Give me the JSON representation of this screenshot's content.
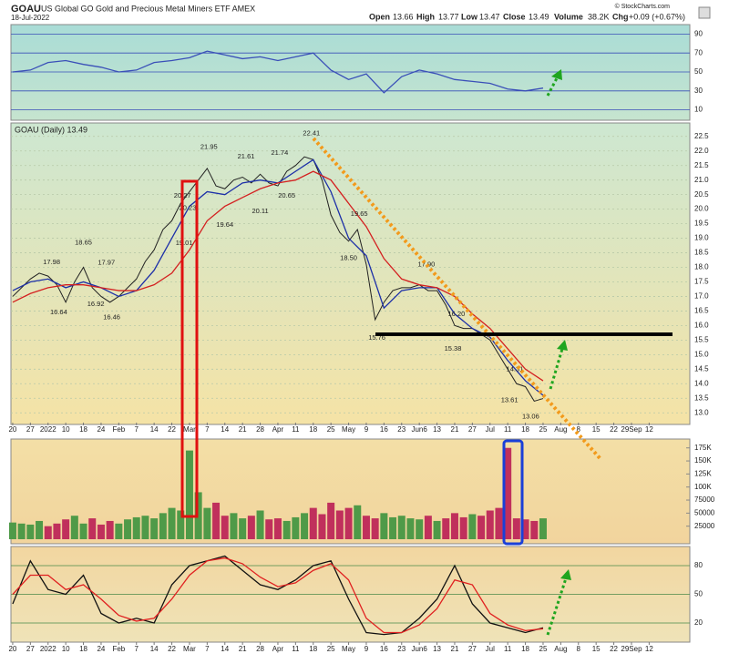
{
  "header": {
    "symbol": "GOAU",
    "description": "US Global GO Gold and Precious Metal Miners ETF  AMEX",
    "date": "18-Jul-2022",
    "open_label": "Open",
    "open": "13.66",
    "high_label": "High",
    "high": "13.77",
    "low_label": "Low",
    "low": "13.47",
    "close_label": "Close",
    "close": "13.49",
    "volume_label": "Volume",
    "volume": "38.2K",
    "chg_label": "Chg",
    "chg": "+0.09 (+0.67%)",
    "copyright": "© StockCharts.com"
  },
  "chart_data": [
    {
      "type": "line",
      "name": "rsi",
      "xlim": [
        -0.1,
        38.3
      ],
      "ylim": [
        0,
        100
      ],
      "yticks": [
        10,
        30,
        50,
        70,
        90
      ],
      "grid": true,
      "grid_color": "#3a4fb8",
      "series": [
        {
          "name": "RSI",
          "color": "#3a4fb8",
          "x": [
            0,
            1,
            2,
            3,
            4,
            5,
            6,
            7,
            8,
            9,
            10,
            11,
            12,
            13,
            14,
            15,
            16,
            17,
            18,
            19,
            20,
            21,
            22,
            23,
            24,
            25,
            26,
            27,
            28,
            29,
            30
          ],
          "values": [
            50,
            52,
            60,
            62,
            58,
            55,
            50,
            52,
            60,
            62,
            65,
            72,
            68,
            64,
            66,
            62,
            66,
            70,
            52,
            42,
            48,
            28,
            45,
            52,
            48,
            42,
            40,
            38,
            32,
            30,
            33
          ]
        }
      ]
    },
    {
      "type": "line",
      "name": "price",
      "title": "GOAU (Daily) 13.49",
      "xlim": [
        -0.1,
        38.3
      ],
      "ylim": [
        12.6,
        22.9
      ],
      "grid": true,
      "grid_color": "#b7c9a8",
      "yticks": [
        {
          "value": 13,
          "label": "13.0"
        },
        13.5,
        {
          "value": 14,
          "label": "14.0"
        },
        14.5,
        {
          "value": 15,
          "label": "15.0"
        },
        15.5,
        {
          "value": 16,
          "label": "16.0"
        },
        16.5,
        {
          "value": 17,
          "label": "17.0"
        },
        17.5,
        {
          "value": 18,
          "label": "18.0"
        },
        18.5,
        {
          "value": 19,
          "label": "19.0"
        },
        19.5,
        {
          "value": 20,
          "label": "20.0"
        },
        20.5,
        {
          "value": 21,
          "label": "21.0"
        },
        21.5,
        {
          "value": 22,
          "label": "22.0"
        },
        22.5
      ],
      "xticks": [
        {
          "value": 0,
          "label": "20"
        },
        {
          "value": 1,
          "label": "27"
        },
        {
          "value": 2,
          "label": "2022"
        },
        {
          "value": 3,
          "label": "10"
        },
        {
          "value": 4,
          "label": "18"
        },
        {
          "value": 5,
          "label": "24"
        },
        {
          "value": 6,
          "label": "Feb"
        },
        {
          "value": 7,
          "label": "7"
        },
        {
          "value": 8,
          "label": "14"
        },
        {
          "value": 9,
          "label": "22"
        },
        {
          "value": 10,
          "label": "Mar"
        },
        {
          "value": 11,
          "label": "7"
        },
        {
          "value": 12,
          "label": "14"
        },
        {
          "value": 13,
          "label": "21"
        },
        {
          "value": 14,
          "label": "28"
        },
        {
          "value": 15,
          "label": "Apr"
        },
        {
          "value": 16,
          "label": "11"
        },
        {
          "value": 17,
          "label": "18"
        },
        {
          "value": 18,
          "label": "25"
        },
        {
          "value": 19,
          "label": "May"
        },
        {
          "value": 20,
          "label": "9"
        },
        {
          "value": 21,
          "label": "16"
        },
        {
          "value": 22,
          "label": "23"
        },
        {
          "value": 23,
          "label": "Jun6"
        },
        {
          "value": 24,
          "label": "13"
        },
        {
          "value": 25,
          "label": "21"
        },
        {
          "value": 26,
          "label": "27"
        },
        {
          "value": 27,
          "label": "Jul"
        },
        {
          "value": 28,
          "label": "11"
        },
        {
          "value": 29,
          "label": "18"
        },
        {
          "value": 30,
          "label": "25"
        },
        {
          "value": 31,
          "label": "Aug"
        },
        {
          "value": 32,
          "label": "8"
        },
        {
          "value": 33,
          "label": "15"
        },
        {
          "value": 34,
          "label": "22"
        },
        {
          "value": 35,
          "label": "29Sep"
        },
        {
          "value": 36,
          "label": "12"
        }
      ],
      "series": [
        {
          "name": "Close",
          "color": "#222222",
          "x": [
            0,
            0.5,
            1,
            1.5,
            2,
            2.5,
            3,
            3.5,
            4,
            4.5,
            5,
            5.5,
            6,
            6.5,
            7,
            7.5,
            8,
            8.5,
            9,
            9.5,
            10,
            10.5,
            11,
            11.5,
            12,
            12.5,
            13,
            13.5,
            14,
            14.5,
            15,
            15.5,
            16,
            16.5,
            17,
            17.5,
            18,
            18.5,
            19,
            19.5,
            20,
            20.5,
            21,
            21.5,
            22,
            22.5,
            23,
            23.5,
            24,
            24.5,
            25,
            25.5,
            26,
            26.5,
            27,
            27.5,
            28,
            28.5,
            29,
            29.5,
            30
          ],
          "values": [
            17.0,
            17.3,
            17.6,
            17.8,
            17.7,
            17.4,
            16.8,
            17.5,
            18.0,
            17.3,
            17.0,
            16.8,
            17.0,
            17.3,
            17.6,
            18.2,
            18.6,
            19.3,
            19.6,
            20.2,
            20.6,
            21.0,
            21.4,
            20.8,
            20.7,
            21.0,
            21.1,
            20.9,
            21.2,
            20.9,
            20.8,
            21.3,
            21.5,
            21.8,
            21.7,
            21.0,
            19.8,
            19.2,
            18.9,
            19.3,
            18.1,
            16.2,
            16.8,
            17.2,
            17.3,
            17.3,
            17.4,
            17.2,
            17.2,
            16.7,
            16.0,
            15.9,
            15.9,
            15.7,
            15.5,
            15.0,
            14.5,
            14.0,
            13.9,
            13.4,
            13.49
          ]
        },
        {
          "name": "MA short",
          "color": "#1c2fa8",
          "x": [
            0,
            1,
            2,
            3,
            4,
            5,
            6,
            7,
            8,
            9,
            10,
            11,
            12,
            13,
            14,
            15,
            16,
            17,
            18,
            19,
            20,
            21,
            22,
            23,
            24,
            25,
            26,
            27,
            28,
            29,
            30
          ],
          "values": [
            17.2,
            17.5,
            17.6,
            17.3,
            17.5,
            17.3,
            17.0,
            17.2,
            17.9,
            19.0,
            20.1,
            20.6,
            20.5,
            20.9,
            21.0,
            20.9,
            21.3,
            21.7,
            20.6,
            19.0,
            18.4,
            16.6,
            17.2,
            17.3,
            17.3,
            16.4,
            15.9,
            15.6,
            14.8,
            14.1,
            13.6
          ]
        },
        {
          "name": "MA long",
          "color": "#d42020",
          "x": [
            0,
            1,
            2,
            3,
            4,
            5,
            6,
            7,
            8,
            9,
            10,
            11,
            12,
            13,
            14,
            15,
            16,
            17,
            18,
            19,
            20,
            21,
            22,
            23,
            24,
            25,
            26,
            27,
            28,
            29,
            30
          ],
          "values": [
            16.8,
            17.1,
            17.3,
            17.4,
            17.4,
            17.3,
            17.2,
            17.2,
            17.4,
            17.8,
            18.6,
            19.6,
            20.1,
            20.4,
            20.7,
            20.9,
            21.0,
            21.3,
            21.0,
            20.2,
            19.4,
            18.3,
            17.6,
            17.4,
            17.3,
            17.0,
            16.4,
            15.9,
            15.2,
            14.5,
            14.1
          ]
        }
      ],
      "annotations": [
        {
          "x": 2.2,
          "value": 17.98
        },
        {
          "x": 2.6,
          "value": 16.64
        },
        {
          "x": 4.0,
          "value": 18.65
        },
        {
          "x": 4.7,
          "value": 16.92
        },
        {
          "x": 5.3,
          "value": 17.97
        },
        {
          "x": 5.6,
          "value": 16.46
        },
        {
          "x": 9.6,
          "value": 20.27
        },
        {
          "x": 9.7,
          "value": 19.01
        },
        {
          "x": 11.1,
          "value": 21.95
        },
        {
          "x": 9.9,
          "value": 20.23
        },
        {
          "x": 12.0,
          "value": 19.64
        },
        {
          "x": 13.2,
          "value": 21.61
        },
        {
          "x": 14.0,
          "value": 20.11
        },
        {
          "x": 15.1,
          "value": 21.74
        },
        {
          "x": 15.5,
          "value": 20.65
        },
        {
          "x": 16.9,
          "value": 22.41
        },
        {
          "x": 19.6,
          "value": 19.65
        },
        {
          "x": 19.0,
          "value": 18.5,
          "label": "18.50"
        },
        {
          "x": 20.6,
          "value": 15.76
        },
        {
          "x": 23.4,
          "value": 17.9,
          "label": "17.90"
        },
        {
          "x": 25.1,
          "value": 16.2,
          "label": "16.20"
        },
        {
          "x": 24.9,
          "value": 15.38
        },
        {
          "x": 28.4,
          "value": 14.31
        },
        {
          "x": 28.1,
          "value": 13.61
        },
        {
          "x": 29.3,
          "value": 13.06
        }
      ]
    },
    {
      "type": "bar",
      "name": "volume",
      "xlim": [
        -0.1,
        38.3
      ],
      "ylim": [
        0,
        192000
      ],
      "yticks": [
        25000,
        50000,
        75000,
        {
          "value": 100000,
          "label": "100K"
        },
        {
          "value": 125000,
          "label": "125K"
        },
        {
          "value": 150000,
          "label": "150K"
        },
        {
          "value": 175000,
          "label": "175K"
        }
      ],
      "up_color": "#4f9a48",
      "down_color": "#c0305c",
      "x": [
        0,
        0.5,
        1,
        1.5,
        2,
        2.5,
        3,
        3.5,
        4,
        4.5,
        5,
        5.5,
        6,
        6.5,
        7,
        7.5,
        8,
        8.5,
        9,
        9.5,
        10,
        10.5,
        11,
        11.5,
        12,
        12.5,
        13,
        13.5,
        14,
        14.5,
        15,
        15.5,
        16,
        16.5,
        17,
        17.5,
        18,
        18.5,
        19,
        19.5,
        20,
        20.5,
        21,
        21.5,
        22,
        22.5,
        23,
        23.5,
        24,
        24.5,
        25,
        25.5,
        26,
        26.5,
        27,
        27.5,
        28,
        28.5,
        29,
        29.5,
        30
      ],
      "values": [
        32000,
        30000,
        28000,
        35000,
        25000,
        30000,
        38000,
        45000,
        30000,
        40000,
        28000,
        35000,
        30000,
        38000,
        42000,
        45000,
        40000,
        50000,
        60000,
        55000,
        170000,
        90000,
        60000,
        70000,
        45000,
        50000,
        40000,
        45000,
        55000,
        38000,
        40000,
        35000,
        42000,
        50000,
        60000,
        48000,
        70000,
        55000,
        60000,
        65000,
        45000,
        40000,
        50000,
        42000,
        45000,
        40000,
        38000,
        45000,
        35000,
        40000,
        50000,
        42000,
        48000,
        45000,
        55000,
        60000,
        175000,
        40000,
        38000,
        35000,
        40000
      ]
    },
    {
      "type": "line",
      "name": "stochastic",
      "xlim": [
        -0.1,
        38.3
      ],
      "ylim": [
        0,
        100
      ],
      "yticks": [
        20,
        50,
        80
      ],
      "grid": true,
      "grid_color": "#4a8a4a",
      "series": [
        {
          "name": "%K",
          "color": "#111111",
          "x": [
            0,
            1,
            2,
            3,
            4,
            5,
            6,
            7,
            8,
            9,
            10,
            11,
            12,
            13,
            14,
            15,
            16,
            17,
            18,
            19,
            20,
            21,
            22,
            23,
            24,
            25,
            26,
            27,
            28,
            29,
            30
          ],
          "values": [
            40,
            85,
            55,
            50,
            70,
            30,
            20,
            25,
            20,
            60,
            80,
            85,
            90,
            75,
            60,
            55,
            65,
            80,
            85,
            45,
            10,
            8,
            10,
            25,
            45,
            80,
            40,
            20,
            15,
            10,
            15
          ]
        },
        {
          "name": "%D",
          "color": "#e02020",
          "x": [
            0,
            1,
            2,
            3,
            4,
            5,
            6,
            7,
            8,
            9,
            10,
            11,
            12,
            13,
            14,
            15,
            16,
            17,
            18,
            19,
            20,
            21,
            22,
            23,
            24,
            25,
            26,
            27,
            28,
            29,
            30
          ],
          "values": [
            50,
            70,
            70,
            55,
            60,
            45,
            28,
            22,
            25,
            45,
            70,
            85,
            88,
            82,
            68,
            58,
            62,
            75,
            82,
            65,
            25,
            10,
            10,
            18,
            35,
            65,
            60,
            30,
            18,
            12,
            14
          ]
        }
      ]
    }
  ]
}
